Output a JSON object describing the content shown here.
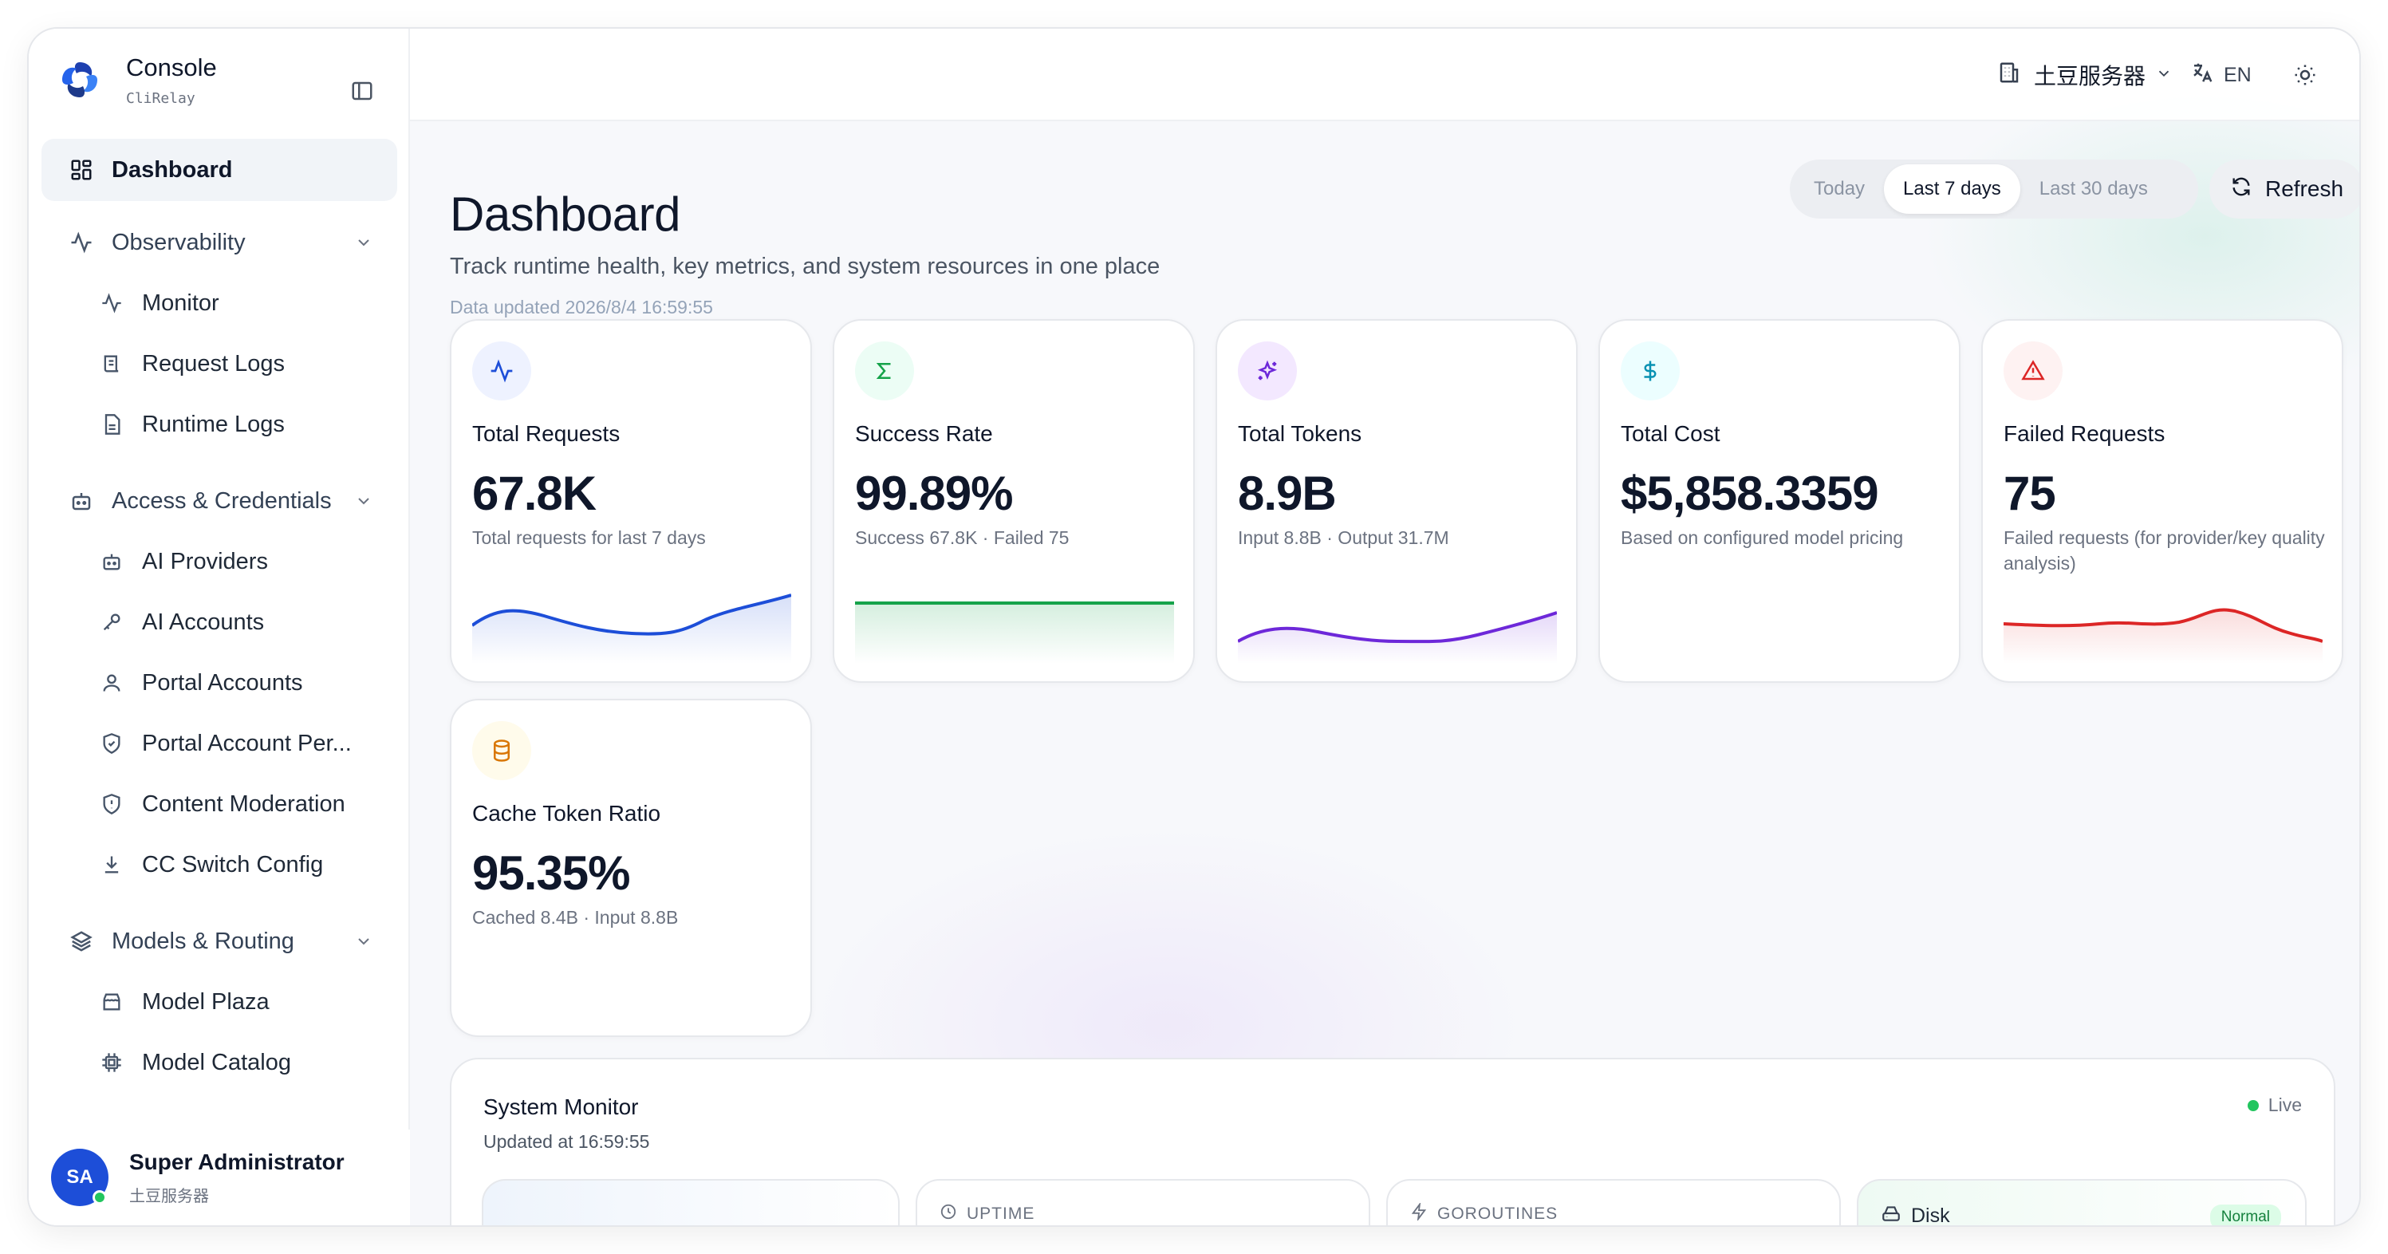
{
  "app": {
    "title": "Console",
    "subtitle": "CliRelay"
  },
  "sidebar": {
    "items": [
      {
        "label": "Dashboard"
      },
      {
        "label": "Observability"
      },
      {
        "label": "Monitor"
      },
      {
        "label": "Request Logs"
      },
      {
        "label": "Runtime Logs"
      },
      {
        "label": "Access & Credentials"
      },
      {
        "label": "AI Providers"
      },
      {
        "label": "AI Accounts"
      },
      {
        "label": "Portal Accounts"
      },
      {
        "label": "Portal Account Per..."
      },
      {
        "label": "Content Moderation"
      },
      {
        "label": "CC Switch Config"
      },
      {
        "label": "Models & Routing"
      },
      {
        "label": "Model Plaza"
      },
      {
        "label": "Model Catalog"
      }
    ]
  },
  "user": {
    "initials": "SA",
    "name": "Super Administrator",
    "org": "土豆服务器"
  },
  "topbar": {
    "server": "土豆服务器",
    "language": "EN"
  },
  "page": {
    "title": "Dashboard",
    "subtitle": "Track runtime health, key metrics, and system resources in one place",
    "updated": "Data updated 2026/8/4 16:59:55"
  },
  "range": {
    "options": [
      "Today",
      "Last 7 days",
      "Last 30 days"
    ],
    "selected": "Last 7 days"
  },
  "refresh_label": "Refresh",
  "cards": [
    {
      "label": "Total Requests",
      "value": "67.8K",
      "desc": "Total requests for last 7 days",
      "color": "#1d4ed8",
      "icon_bg": "#eef2ff",
      "icon": "activity-icon"
    },
    {
      "label": "Success Rate",
      "value": "99.89%",
      "desc": "Success 67.8K · Failed 75",
      "color": "#16a34a",
      "icon_bg": "#ecfdf5",
      "icon": "sigma-icon"
    },
    {
      "label": "Total Tokens",
      "value": "8.9B",
      "desc": "Input 8.8B · Output 31.7M",
      "color": "#6d28d9",
      "icon_bg": "#f3e8ff",
      "icon": "sparkles-icon"
    },
    {
      "label": "Total Cost",
      "value": "$5,858.3359",
      "desc": "Based on configured model pricing",
      "color": "#0891b2",
      "icon_bg": "#ecfeff",
      "icon": "dollar-icon"
    },
    {
      "label": "Failed Requests",
      "value": "75",
      "desc": "Failed requests (for provider/key quality analysis)",
      "color": "#dc2626",
      "icon_bg": "#fef2f2",
      "icon": "alert-triangle-icon"
    },
    {
      "label": "Cache Token Ratio",
      "value": "95.35%",
      "desc": "Cached 8.4B · Input 8.8B",
      "color": "#d97706",
      "icon_bg": "#fffbeb",
      "icon": "database-icon"
    }
  ],
  "system_monitor": {
    "title": "System Monitor",
    "updated": "Updated at 16:59:55",
    "live_label": "Live",
    "tiles": [
      {
        "label": "UPTIME"
      },
      {
        "label": "GOROUTINES"
      },
      {
        "label": "Disk",
        "badge": "Normal"
      }
    ]
  }
}
